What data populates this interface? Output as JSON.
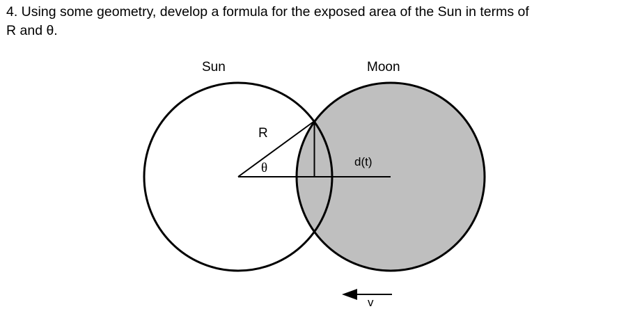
{
  "question": {
    "text_line1": "4. Using some geometry, develop a formula for the exposed area of the Sun in terms of",
    "text_line2": "R and θ."
  },
  "diagram": {
    "sun_label": "Sun",
    "moon_label": "Moon",
    "radius_label": "R",
    "angle_label": "θ",
    "distance_label": "d(t)",
    "velocity_label": "v",
    "colors": {
      "stroke": "#000000",
      "sun_fill": "#ffffff",
      "moon_fill": "#bfbfbf"
    }
  }
}
